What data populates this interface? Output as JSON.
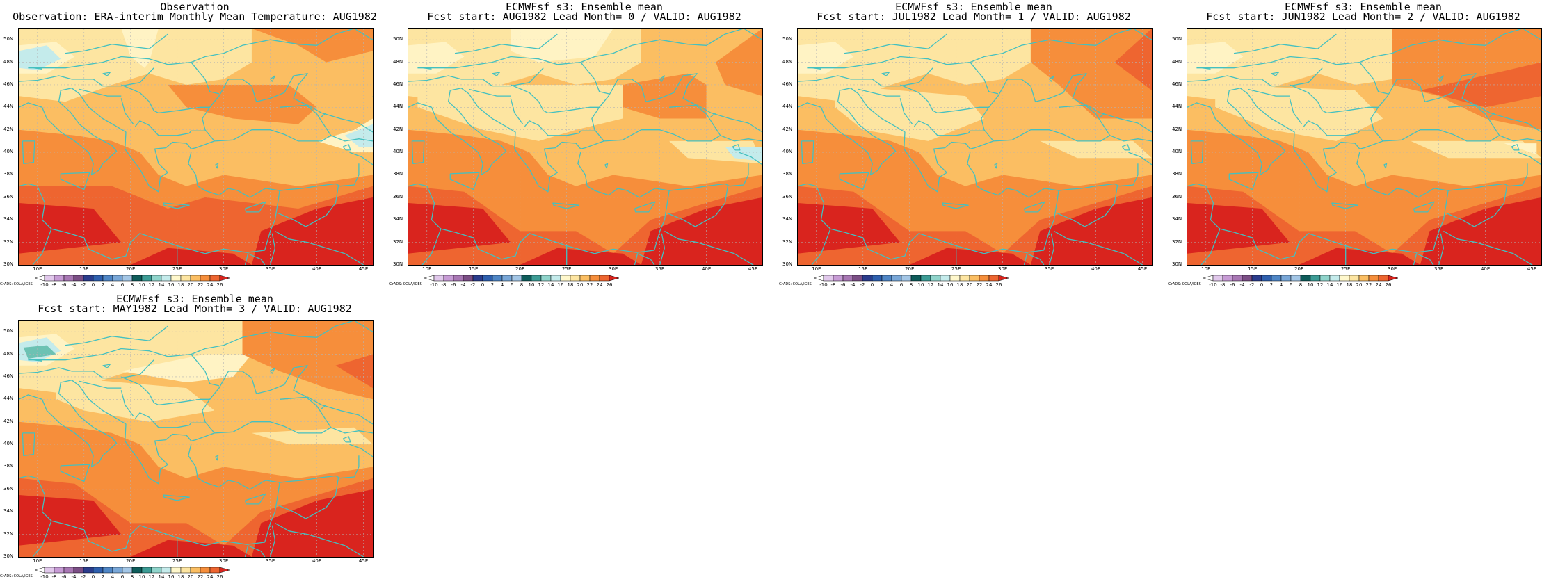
{
  "panels": [
    {
      "title_line1": "Observation",
      "title_line2": "Observation: ERA-interim Monthly Mean Temperature: AUG1982",
      "variant": 0
    },
    {
      "title_line1": "ECMWFsf s3: Ensemble mean",
      "title_line2": "Fcst start: AUG1982  Lead Month= 0 / VALID: AUG1982",
      "variant": 1
    },
    {
      "title_line1": "ECMWFsf s3: Ensemble mean",
      "title_line2": "Fcst start: JUL1982  Lead Month= 1 / VALID: AUG1982",
      "variant": 2
    },
    {
      "title_line1": "ECMWFsf s3: Ensemble mean",
      "title_line2": "Fcst start: JUN1982  Lead Month= 2 / VALID: AUG1982",
      "variant": 3
    },
    {
      "title_line1": "ECMWFsf s3: Ensemble mean",
      "title_line2": "Fcst start: MAY1982  Lead Month= 3 / VALID: AUG1982",
      "variant": 4
    }
  ],
  "lat_labels": [
    "50N",
    "48N",
    "46N",
    "44N",
    "42N",
    "40N",
    "38N",
    "36N",
    "34N",
    "32N",
    "30N"
  ],
  "lon_labels": [
    "10E",
    "15E",
    "20E",
    "25E",
    "30E",
    "35E",
    "40E",
    "45E"
  ],
  "colorbar": {
    "credit": "GrADS: COLA/IGES",
    "labels": [
      "-10",
      "-8",
      "-6",
      "-4",
      "-2",
      "0",
      "2",
      "4",
      "6",
      "8",
      "10",
      "12",
      "14",
      "16",
      "18",
      "20",
      "22",
      "24",
      "26"
    ],
    "colors": [
      "#ffffff",
      "#e1c8eb",
      "#c79bd5",
      "#a877b4",
      "#7b4e85",
      "#2b3c8c",
      "#2e5fae",
      "#4f86c6",
      "#79a7d8",
      "#a3c6e6",
      "#0e5c5a",
      "#3c9c95",
      "#8fd4cb",
      "#c4ebeb",
      "#fff8cc",
      "#fde5a1",
      "#fbbe62",
      "#f68e3b",
      "#ee6530",
      "#d9241e"
    ]
  },
  "colors": {
    "coast": "#44c0c0",
    "grid": "#b4b4b4"
  }
}
